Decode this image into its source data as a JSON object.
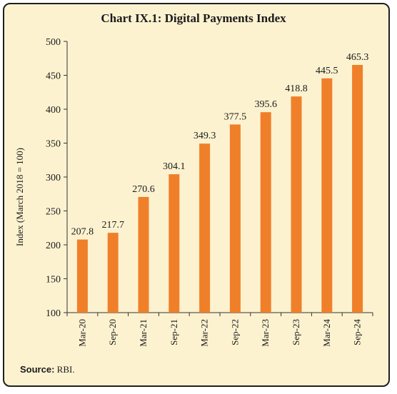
{
  "chart_data": {
    "type": "bar",
    "title": "Chart IX.1: Digital Payments Index",
    "xlabel": "",
    "ylabel": "Index (March 2018 = 100)",
    "categories": [
      "Mar-20",
      "Sep-20",
      "Mar-21",
      "Sep-21",
      "Mar-22",
      "Sep-22",
      "Mar-23",
      "Sep-23",
      "Mar-24",
      "Sep-24"
    ],
    "values": [
      207.8,
      217.7,
      270.6,
      304.1,
      349.3,
      377.5,
      395.6,
      418.8,
      445.5,
      465.3
    ],
    "value_labels": [
      "207.8",
      "217.7",
      "270.6",
      "304.1",
      "349.3",
      "377.5",
      "395.6",
      "418.8",
      "445.5",
      "465.3"
    ],
    "ylim": [
      100,
      500
    ],
    "yticks": [
      100,
      150,
      200,
      250,
      300,
      350,
      400,
      450,
      500
    ],
    "grid": false,
    "bar_color": "#f07f2a"
  },
  "source": {
    "label": "Source:",
    "text": " RBI."
  }
}
